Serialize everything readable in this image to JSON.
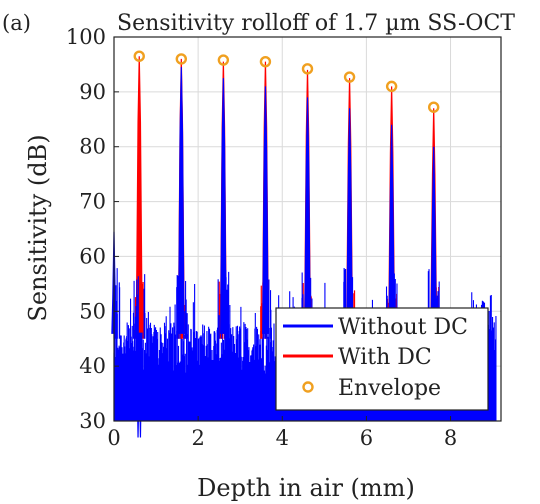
{
  "chart_data": {
    "type": "line",
    "panel_label": "(a)",
    "title": "Sensitivity rolloff of 1.7 µm SS-OCT",
    "xlabel": "Depth in air (mm)",
    "ylabel": "Sensitivity (dB)",
    "xlim": [
      0,
      9.2
    ],
    "ylim": [
      30,
      100
    ],
    "xticks": [
      0,
      2,
      4,
      6,
      8
    ],
    "yticks": [
      30,
      40,
      50,
      60,
      70,
      80,
      90,
      100
    ],
    "grid": true,
    "legend_position": "bottom-right",
    "noise_floor_db": [
      38,
      48
    ],
    "series": [
      {
        "name": "Without DC",
        "color": "#0000ff",
        "peak_depths_mm": [
          0.0,
          0.6,
          1.6,
          2.6,
          3.6,
          4.6,
          5.6,
          6.6,
          7.6
        ],
        "peak_values_db": [
          64.5,
          39,
          94.5,
          92.5,
          91,
          89,
          87,
          84,
          80
        ]
      },
      {
        "name": "With DC",
        "color": "#ff0000",
        "peak_depths_mm": [
          0.6,
          1.6,
          2.6,
          3.6,
          4.6,
          5.6,
          6.6,
          7.6
        ],
        "peak_values_db": [
          96.5,
          96,
          95.5,
          95.5,
          94,
          92.5,
          91,
          87
        ]
      },
      {
        "name": "Envelope",
        "color": "#f0a020",
        "marker": "circle",
        "x": [
          0.6,
          1.6,
          2.6,
          3.6,
          4.6,
          5.6,
          6.6,
          7.6
        ],
        "y": [
          96.5,
          96,
          95.8,
          95.5,
          94.2,
          92.7,
          91,
          87.2
        ]
      }
    ]
  }
}
